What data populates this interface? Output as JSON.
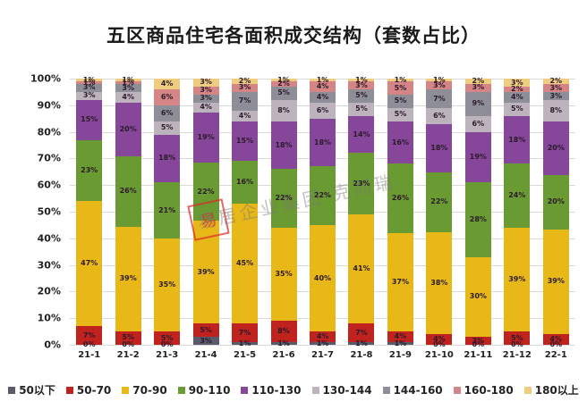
{
  "title": "五区商品住宅各面积成交结构（套数占比）",
  "watermark": {
    "stamp": "易",
    "text": "易居企业集团·克而瑞"
  },
  "chart_data": {
    "type": "bar",
    "stacked": true,
    "percent": true,
    "title": "五区商品住宅各面积成交结构（套数占比）",
    "xlabel": "",
    "ylabel": "",
    "ylim": [
      0,
      100
    ],
    "yticks": [
      "0%",
      "10%",
      "20%",
      "30%",
      "40%",
      "50%",
      "60%",
      "70%",
      "80%",
      "90%",
      "100%"
    ],
    "grid": true,
    "legend_position": "bottom",
    "categories": [
      "21-1",
      "21-2",
      "21-3",
      "21-4",
      "21-5",
      "21-6",
      "21-7",
      "21-8",
      "21-9",
      "21-10",
      "21-11",
      "21-12",
      "22-1"
    ],
    "series": [
      {
        "name": "50以下",
        "color": "#5a5a6a",
        "values": [
          0,
          0,
          0,
          3,
          1,
          1,
          1,
          1,
          1,
          0,
          0,
          0,
          0
        ]
      },
      {
        "name": "50-70",
        "color": "#c0221e",
        "values": [
          7,
          5,
          5,
          5,
          7,
          8,
          4,
          7,
          4,
          4,
          3,
          5,
          4
        ]
      },
      {
        "name": "70-90",
        "color": "#e8b818",
        "values": [
          47,
          39,
          35,
          39,
          45,
          35,
          40,
          41,
          37,
          38,
          30,
          39,
          39
        ]
      },
      {
        "name": "90-110",
        "color": "#6a9a32",
        "values": [
          23,
          26,
          21,
          22,
          16,
          22,
          22,
          23,
          26,
          22,
          28,
          24,
          20
        ]
      },
      {
        "name": "110-130",
        "color": "#86469a",
        "values": [
          15,
          20,
          18,
          19,
          15,
          18,
          18,
          14,
          16,
          18,
          19,
          18,
          20
        ]
      },
      {
        "name": "130-144",
        "color": "#bdb3bd",
        "values": [
          3,
          4,
          5,
          4,
          4,
          8,
          6,
          5,
          5,
          6,
          6,
          5,
          8
        ]
      },
      {
        "name": "144-160",
        "color": "#8e8e98",
        "values": [
          3,
          3,
          6,
          3,
          7,
          5,
          4,
          5,
          5,
          7,
          9,
          4,
          3
        ]
      },
      {
        "name": "160-180",
        "color": "#d58585",
        "values": [
          1,
          1,
          6,
          3,
          3,
          2,
          4,
          3,
          5,
          3,
          3,
          2,
          3
        ]
      },
      {
        "name": "180以上",
        "color": "#efcd80",
        "values": [
          1,
          1,
          4,
          3,
          2,
          1,
          1,
          1,
          1,
          1,
          2,
          3,
          2
        ]
      }
    ]
  }
}
